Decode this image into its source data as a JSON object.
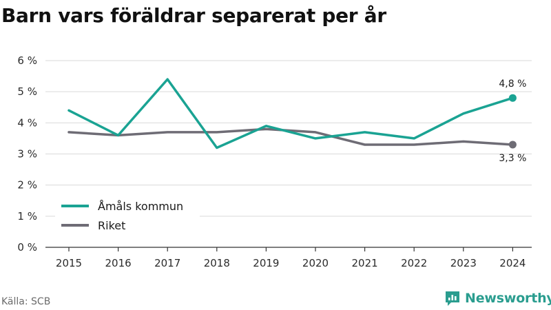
{
  "title": "Barn vars föräldrar separerat per år",
  "source": "Källa: SCB",
  "brand": {
    "name": "Newsworthy",
    "icon": "newsworthy-logo-icon"
  },
  "colors": {
    "teal": "#1aa393",
    "gray": "#6e6c75",
    "grid": "#d9d9d9",
    "axis": "#333333"
  },
  "chart_data": {
    "type": "line",
    "title": "Barn vars föräldrar separerat per år",
    "x": [
      "2015",
      "2016",
      "2017",
      "2018",
      "2019",
      "2020",
      "2021",
      "2022",
      "2023",
      "2024"
    ],
    "yticks": [
      "0 %",
      "1 %",
      "2 %",
      "3 %",
      "4 %",
      "5 %",
      "6 %"
    ],
    "ylim": [
      0,
      6
    ],
    "grid": true,
    "legend": "bottom-left",
    "series": [
      {
        "name": "Åmåls kommun",
        "color": "#1aa393",
        "values": [
          4.4,
          3.6,
          5.4,
          3.2,
          3.9,
          3.5,
          3.7,
          3.5,
          4.3,
          4.8
        ],
        "end_label": "4,8 %"
      },
      {
        "name": "Riket",
        "color": "#6e6c75",
        "values": [
          3.7,
          3.6,
          3.7,
          3.7,
          3.8,
          3.7,
          3.3,
          3.3,
          3.4,
          3.3
        ],
        "end_label": "3,3 %"
      }
    ]
  }
}
